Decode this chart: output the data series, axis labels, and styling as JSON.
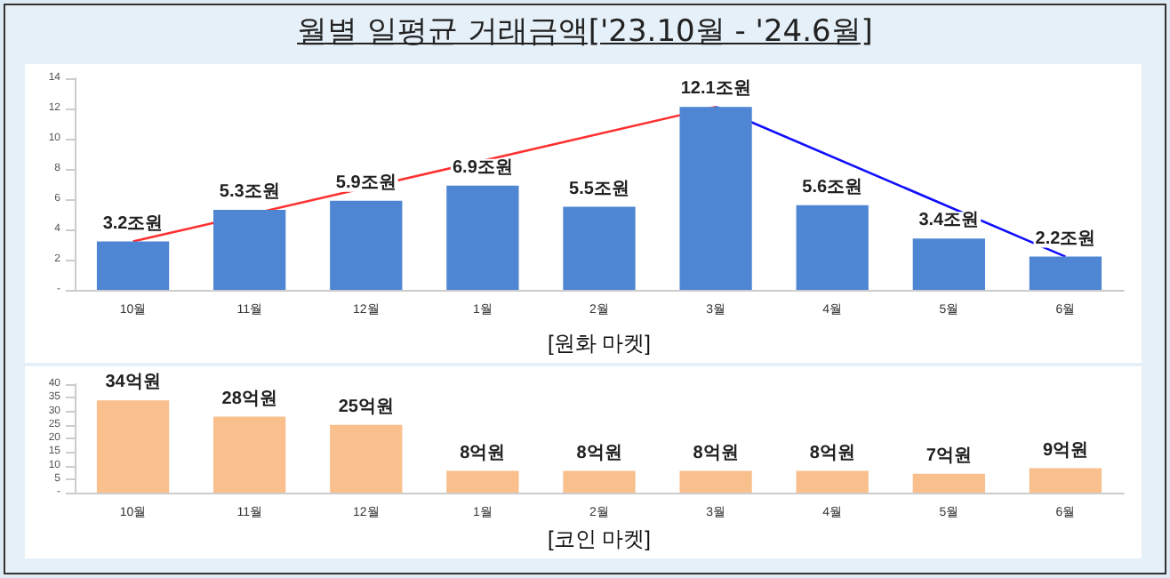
{
  "chart_data": [
    {
      "type": "bar",
      "title": "월별 일평균 거래금액['23.10월 - '24.6월]",
      "xlabel": "[원화 마켓]",
      "categories": [
        "10월",
        "11월",
        "12월",
        "1월",
        "2월",
        "3월",
        "4월",
        "5월",
        "6월"
      ],
      "ylim": [
        0,
        14
      ],
      "yticks": [
        {
          "value": 0,
          "label": "-"
        },
        2,
        4,
        6,
        8,
        10,
        12,
        14
      ],
      "marker": "none",
      "series": [
        {
          "color": "#4f86d3",
          "values": [
            3.2,
            5.3,
            5.9,
            6.9,
            5.5,
            12.1,
            5.6,
            3.4,
            2.2
          ],
          "value_labels": [
            "3.2조원",
            "5.3조원",
            "5.9조원",
            "6.9조원",
            "5.5조원",
            "12.1조원",
            "5.6조원",
            "3.4조원",
            "2.2조원"
          ]
        },
        {
          "type": "line",
          "color": "#ff3030",
          "x": [
            "10월",
            "3월"
          ],
          "values": [
            3.2,
            12.1
          ]
        },
        {
          "type": "line",
          "color": "#1010ff",
          "x": [
            "3월",
            "6월"
          ],
          "values": [
            12.1,
            2.2
          ]
        }
      ]
    },
    {
      "type": "bar",
      "xlabel": "[코인 마켓]",
      "categories": [
        "10월",
        "11월",
        "12월",
        "1월",
        "2월",
        "3월",
        "4월",
        "5월",
        "6월"
      ],
      "ylim": [
        0,
        40
      ],
      "yticks": [
        {
          "value": 0,
          "label": "-"
        },
        5,
        10,
        15,
        20,
        25,
        30,
        35,
        40
      ],
      "color": "#f9bf8d",
      "values": [
        34,
        28,
        25,
        8,
        8,
        8,
        8,
        7,
        9
      ],
      "value_labels": [
        "34억원",
        "28억원",
        "25억원",
        "8억원",
        "8억원",
        "8억원",
        "8억원",
        "7억원",
        "9억원"
      ]
    }
  ]
}
